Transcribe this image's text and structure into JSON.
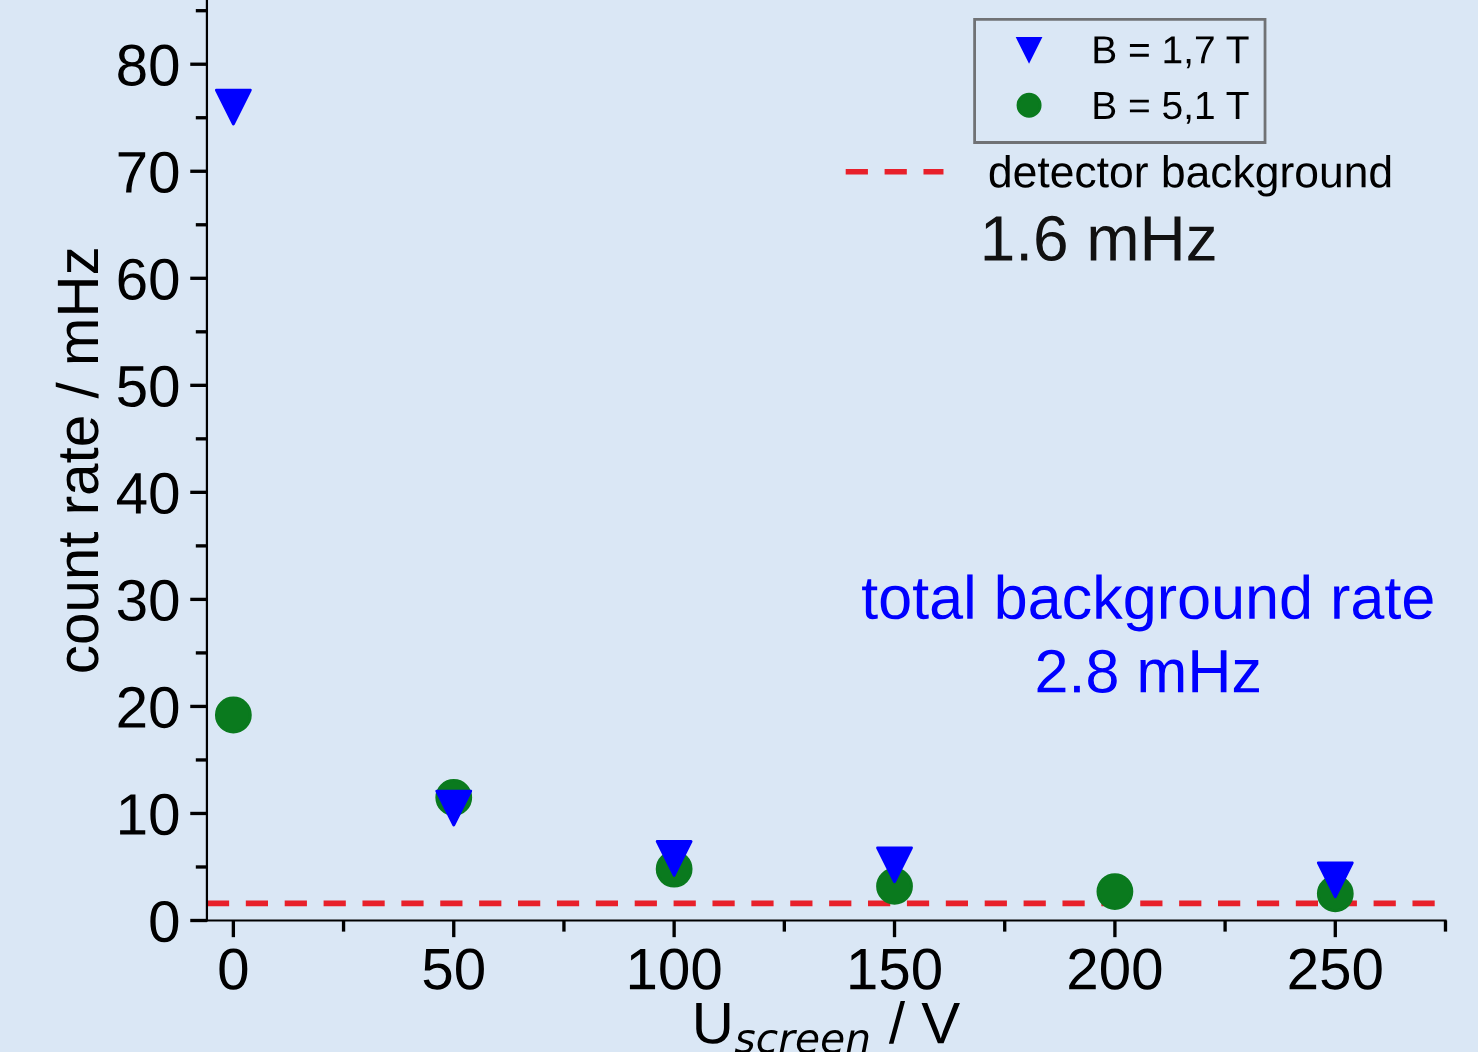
{
  "chart_data": {
    "type": "scatter",
    "xlabel": "U$_{screen}$ / V",
    "ylabel": "count rate / mHz",
    "x": [
      0,
      50,
      100,
      150,
      200,
      250
    ],
    "series": [
      {
        "name": "B = 1,7 T",
        "color": "#0000ff",
        "marker": "triangle",
        "values": [
          76,
          10.5,
          5.8,
          5.2,
          null,
          3.8
        ]
      },
      {
        "name": "B = 5,1 T",
        "color": "#0a7a1e",
        "marker": "circle",
        "values": [
          19.2,
          11.5,
          4.8,
          3.2,
          2.7,
          2.5
        ]
      }
    ],
    "ref_lines": [
      {
        "axis": "y",
        "value": 1.6,
        "label": "detector background",
        "color": "#e8202a",
        "line_style": "dashed"
      }
    ],
    "annotations": [
      "1.6 mHz",
      "total background rate",
      "2.8 mHz"
    ],
    "xlim": [
      -6,
      275
    ],
    "xticks": [
      0,
      50,
      100,
      150,
      200,
      250
    ],
    "ylim": [
      0,
      86
    ],
    "yticks": [
      0,
      10,
      20,
      30,
      40,
      50,
      60,
      70,
      80
    ],
    "grid": false,
    "legend": "top right"
  }
}
